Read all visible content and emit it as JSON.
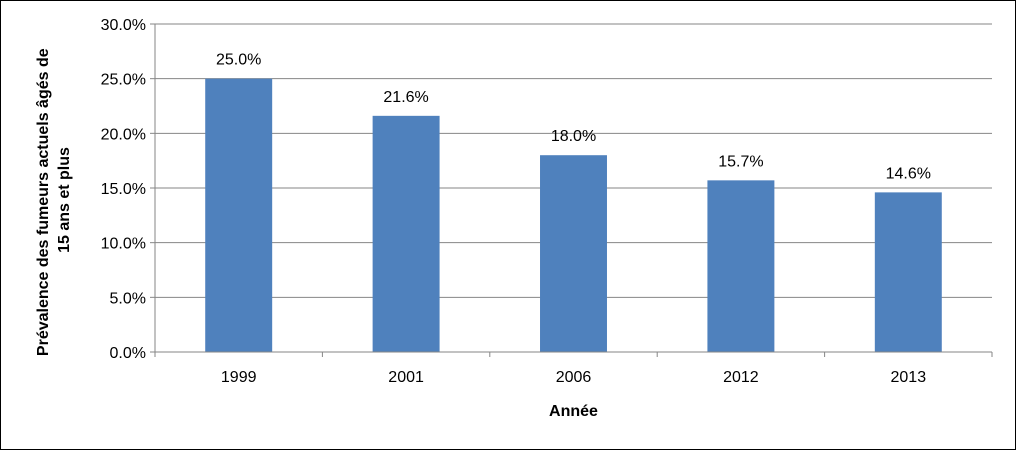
{
  "chart_data": {
    "type": "bar",
    "categories": [
      "1999",
      "2001",
      "2006",
      "2012",
      "2013"
    ],
    "values": [
      25.0,
      21.6,
      18.0,
      15.7,
      14.6
    ],
    "data_labels": [
      "25.0%",
      "21.6%",
      "18.0%",
      "15.7%",
      "14.6%"
    ],
    "title": "",
    "xlabel": "Année",
    "ylabel_line1": "Prévalence des fumeurs actuels âgés de",
    "ylabel_line2": "15 ans et plus",
    "ylim": [
      0,
      30
    ],
    "yticks": [
      0,
      5,
      10,
      15,
      20,
      25,
      30
    ],
    "ytick_labels": [
      "0.0%",
      "5.0%",
      "10.0%",
      "15.0%",
      "20.0%",
      "25.0%",
      "30.0%"
    ],
    "grid": true,
    "legend": "none",
    "bar_color": "#4F81BD",
    "grid_color": "#868686"
  }
}
